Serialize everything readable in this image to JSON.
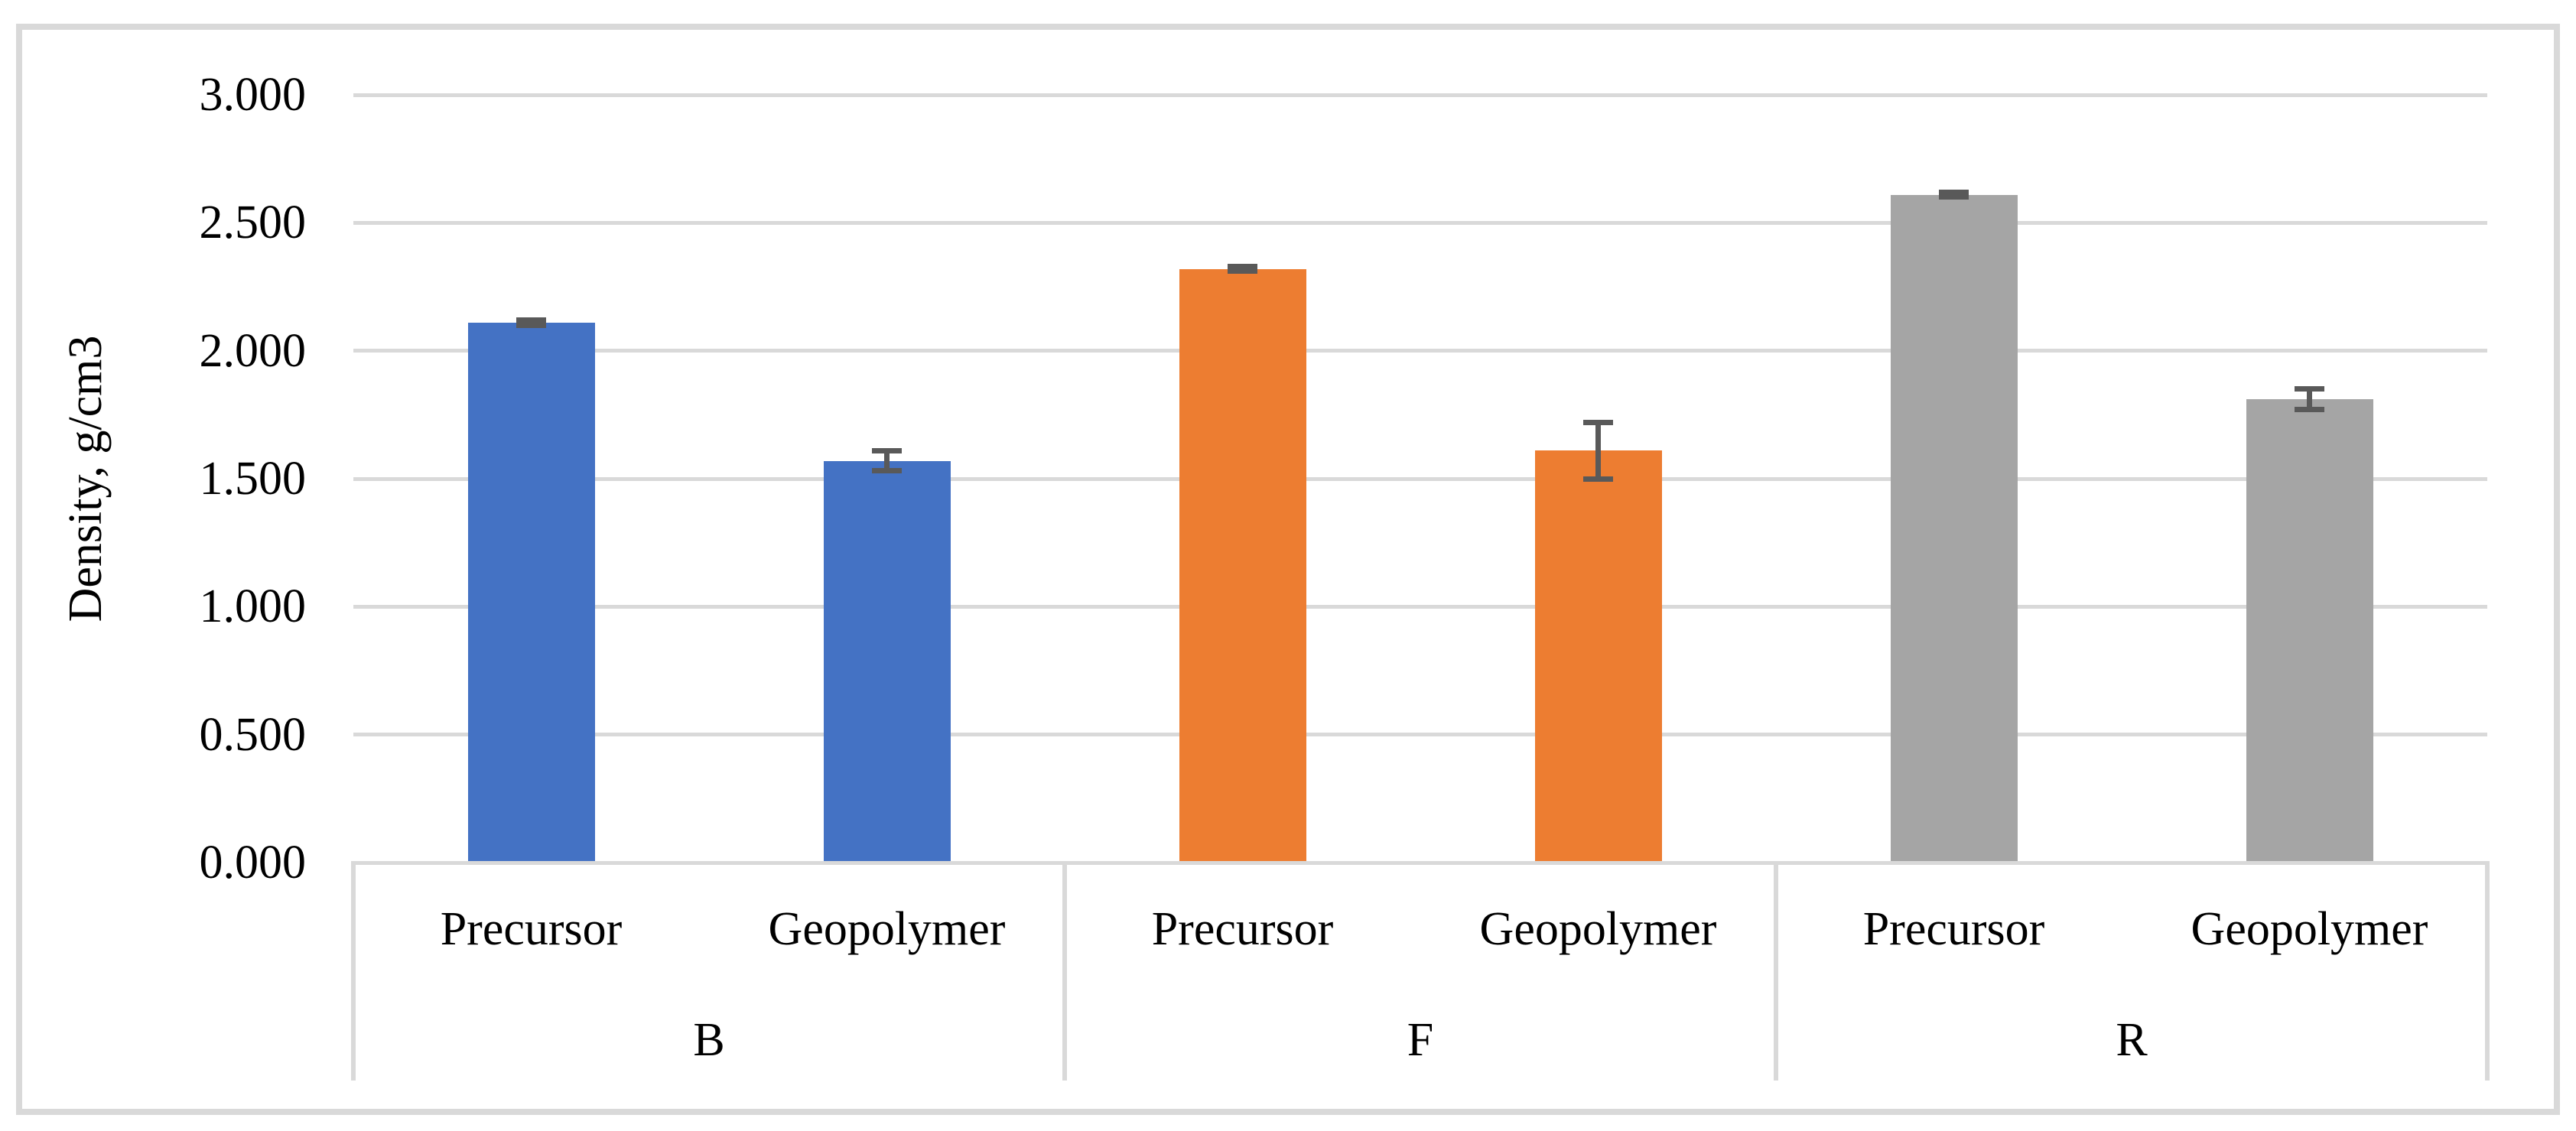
{
  "chart_data": {
    "type": "bar",
    "title": "",
    "xlabel": "",
    "ylabel": "Density, g/cm3",
    "ylim": [
      0.0,
      3.0
    ],
    "yticks": {
      "values": [
        0.0,
        0.5,
        1.0,
        1.5,
        2.0,
        2.5,
        3.0
      ],
      "labels": [
        "0.000",
        "0.500",
        "1.000",
        "1.500",
        "2.000",
        "2.500",
        "3.000"
      ]
    },
    "grid": true,
    "legend_position": "none",
    "bar_categories": [
      "Precursor",
      "Geopolymer"
    ],
    "groups": [
      {
        "label": "B",
        "color": "#4472C4",
        "bars": [
          {
            "category": "Precursor",
            "value": 2.11,
            "error": 0.01
          },
          {
            "category": "Geopolymer",
            "value": 1.57,
            "error": 0.04
          }
        ]
      },
      {
        "label": "F",
        "color": "#ED7D31",
        "bars": [
          {
            "category": "Precursor",
            "value": 2.32,
            "error": 0.01
          },
          {
            "category": "Geopolymer",
            "value": 1.61,
            "error": 0.11
          }
        ]
      },
      {
        "label": "R",
        "color": "#A5A5A5",
        "bars": [
          {
            "category": "Precursor",
            "value": 2.61,
            "error": 0.01
          },
          {
            "category": "Geopolymer",
            "value": 1.81,
            "error": 0.04
          }
        ]
      }
    ],
    "error_bar_color": "#595959",
    "gridline_color": "#D9D9D9",
    "axis_line_color": "#D9D9D9",
    "frame_color": "#D9D9D9",
    "text_color": "#000000",
    "background": "#FFFFFF"
  }
}
